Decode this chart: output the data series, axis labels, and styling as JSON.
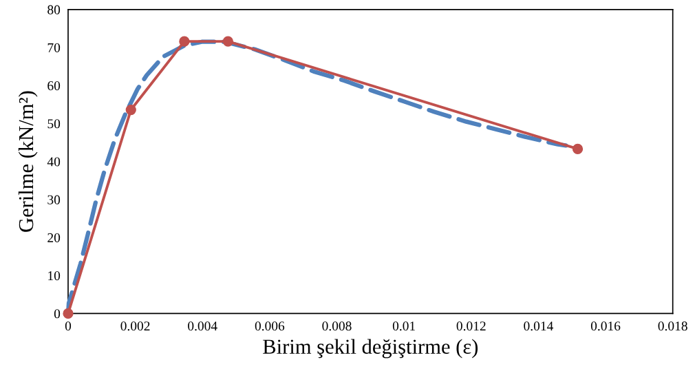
{
  "chart_data": {
    "type": "line",
    "xlabel": "Birim şekil değiştirme (ε)",
    "ylabel": "Gerilme (kN/m²)",
    "series": [
      {
        "color": "#4f81bd",
        "line_style": "dashed",
        "marker": "none",
        "x": [
          0,
          2e-05,
          0.00037,
          0.00059,
          0.00084,
          0.00109,
          0.00139,
          0.0017,
          0.00207,
          0.00234,
          0.00283,
          0.00346,
          0.00398,
          0.00467,
          0.00556,
          0.00644,
          0.00734,
          0.00822,
          0.0091,
          0.01,
          0.01089,
          0.01185,
          0.01273,
          0.01365,
          0.01458,
          0.01482
        ],
        "values": [
          0,
          2.7,
          13.1,
          20.9,
          30.0,
          37.8,
          45.8,
          52.4,
          59.1,
          62.7,
          67.6,
          70.5,
          71.5,
          71.5,
          69.5,
          66.7,
          63.6,
          61.3,
          58.5,
          55.8,
          53.1,
          50.5,
          48.5,
          46.4,
          44.5,
          44.2
        ]
      },
      {
        "color": "#c0504d",
        "line_style": "solid",
        "marker": "circle",
        "x": [
          0,
          0.00187,
          0.00346,
          0.00476,
          0.01517
        ],
        "values": [
          0,
          53.6,
          71.6,
          71.6,
          43.3
        ]
      }
    ],
    "xlim": [
      0,
      0.018
    ],
    "xticks": [
      0,
      0.002,
      0.004,
      0.006,
      0.008,
      0.01,
      0.012,
      0.014,
      0.016,
      0.018
    ],
    "ylim": [
      0,
      80
    ],
    "yticks": [
      0,
      10,
      20,
      30,
      40,
      50,
      60,
      70,
      80
    ],
    "grid": false
  }
}
